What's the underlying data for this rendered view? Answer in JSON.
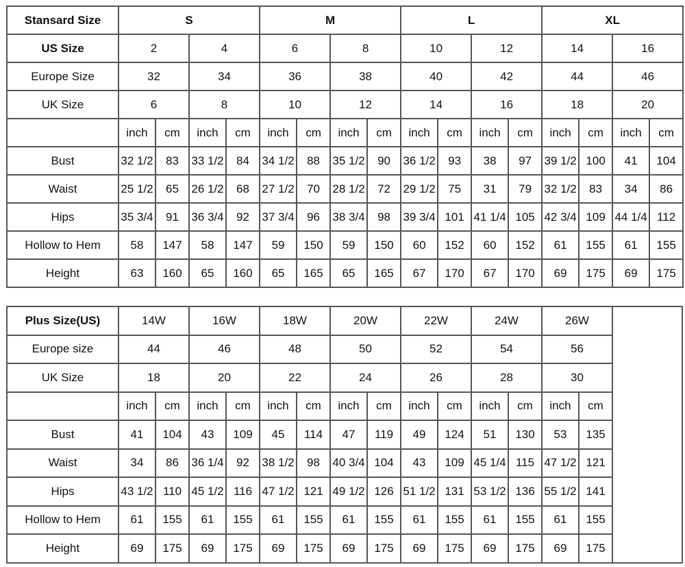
{
  "standard": {
    "title": "Stansard Size",
    "groups": [
      "S",
      "M",
      "L",
      "XL"
    ],
    "size_rows": [
      {
        "label": "US Size",
        "bold": true,
        "values": [
          "2",
          "4",
          "6",
          "8",
          "10",
          "12",
          "14",
          "16"
        ]
      },
      {
        "label": "Europe Size",
        "values": [
          "32",
          "34",
          "36",
          "38",
          "40",
          "42",
          "44",
          "46"
        ]
      },
      {
        "label": "UK Size",
        "values": [
          "6",
          "8",
          "10",
          "12",
          "14",
          "16",
          "18",
          "20"
        ]
      }
    ],
    "units": [
      "inch",
      "cm"
    ],
    "measurements": [
      {
        "label": "Bust",
        "values": [
          "32 1/2",
          "83",
          "33 1/2",
          "84",
          "34 1/2",
          "88",
          "35 1/2",
          "90",
          "36 1/2",
          "93",
          "38",
          "97",
          "39 1/2",
          "100",
          "41",
          "104"
        ]
      },
      {
        "label": "Waist",
        "values": [
          "25 1/2",
          "65",
          "26 1/2",
          "68",
          "27 1/2",
          "70",
          "28 1/2",
          "72",
          "29 1/2",
          "75",
          "31",
          "79",
          "32 1/2",
          "83",
          "34",
          "86"
        ]
      },
      {
        "label": "Hips",
        "values": [
          "35 3/4",
          "91",
          "36 3/4",
          "92",
          "37 3/4",
          "96",
          "38 3/4",
          "98",
          "39 3/4",
          "101",
          "41 1/4",
          "105",
          "42 3/4",
          "109",
          "44 1/4",
          "112"
        ]
      },
      {
        "label": "Hollow to Hem",
        "values": [
          "58",
          "147",
          "58",
          "147",
          "59",
          "150",
          "59",
          "150",
          "60",
          "152",
          "60",
          "152",
          "61",
          "155",
          "61",
          "155"
        ]
      },
      {
        "label": "Height",
        "values": [
          "63",
          "160",
          "65",
          "160",
          "65",
          "165",
          "65",
          "165",
          "67",
          "170",
          "67",
          "170",
          "69",
          "175",
          "69",
          "175"
        ]
      }
    ]
  },
  "plus": {
    "title": "Plus Size(US)",
    "sizes": [
      "14W",
      "16W",
      "18W",
      "20W",
      "22W",
      "24W",
      "26W"
    ],
    "size_rows": [
      {
        "label": "Europe size",
        "values": [
          "44",
          "46",
          "48",
          "50",
          "52",
          "54",
          "56"
        ]
      },
      {
        "label": "UK Size",
        "values": [
          "18",
          "20",
          "22",
          "24",
          "26",
          "28",
          "30"
        ]
      }
    ],
    "units": [
      "inch",
      "cm"
    ],
    "measurements": [
      {
        "label": "Bust",
        "values": [
          "41",
          "104",
          "43",
          "109",
          "45",
          "114",
          "47",
          "119",
          "49",
          "124",
          "51",
          "130",
          "53",
          "135"
        ]
      },
      {
        "label": "Waist",
        "values": [
          "34",
          "86",
          "36 1/4",
          "92",
          "38 1/2",
          "98",
          "40 3/4",
          "104",
          "43",
          "109",
          "45 1/4",
          "115",
          "47 1/2",
          "121"
        ]
      },
      {
        "label": "Hips",
        "values": [
          "43 1/2",
          "110",
          "45 1/2",
          "116",
          "47 1/2",
          "121",
          "49 1/2",
          "126",
          "51 1/2",
          "131",
          "53 1/2",
          "136",
          "55 1/2",
          "141"
        ]
      },
      {
        "label": "Hollow to Hem",
        "values": [
          "61",
          "155",
          "61",
          "155",
          "61",
          "155",
          "61",
          "155",
          "61",
          "155",
          "61",
          "155",
          "61",
          "155"
        ]
      },
      {
        "label": "Height",
        "values": [
          "69",
          "175",
          "69",
          "175",
          "69",
          "175",
          "69",
          "175",
          "69",
          "175",
          "69",
          "175",
          "69",
          "175"
        ]
      }
    ]
  }
}
